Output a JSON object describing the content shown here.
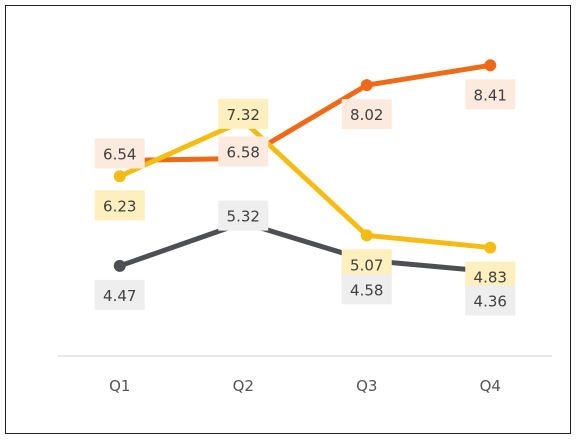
{
  "chart_data": {
    "type": "line",
    "title": "",
    "xlabel": "",
    "ylabel": "",
    "categories": [
      "Q1",
      "Q2",
      "Q3",
      "Q4"
    ],
    "ylim": [
      2.7,
      9.3
    ],
    "grid": false,
    "legend": "none",
    "series": [
      {
        "color": "#ee6a17",
        "label_bg": "#fdeadf",
        "values": [
          6.54,
          6.58,
          8.02,
          8.41
        ],
        "labels": [
          "6.54",
          "6.58",
          "8.02",
          "8.41"
        ]
      },
      {
        "color": "#f5bd14",
        "label_bg": "#fdefbe",
        "values": [
          6.23,
          7.32,
          5.07,
          4.83
        ],
        "labels": [
          "6.23",
          "7.32",
          "5.07",
          "4.83"
        ]
      },
      {
        "color": "#4d4f53",
        "label_bg": "#eeeeee",
        "values": [
          4.47,
          5.32,
          4.58,
          4.36
        ],
        "labels": [
          "4.47",
          "5.32",
          "4.58",
          "4.36"
        ]
      }
    ]
  }
}
